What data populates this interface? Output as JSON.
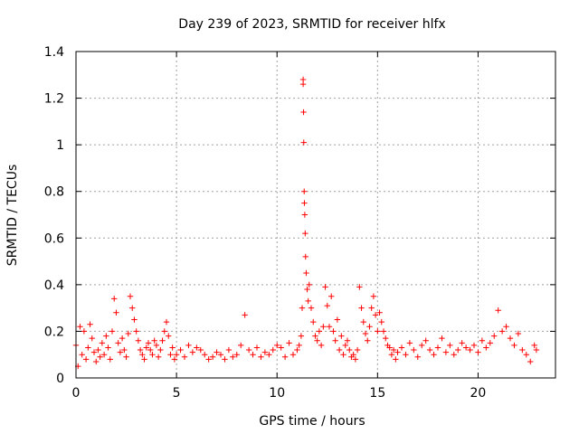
{
  "chart_data": {
    "type": "scatter",
    "title": "Day 239 of 2023, SRMTID for receiver hlfx",
    "xlabel": "GPS time / hours",
    "ylabel": "SRMTID / TECUs",
    "xlim": [
      0,
      23.85
    ],
    "ylim": [
      0,
      1.4
    ],
    "xticks": [
      0,
      5,
      10,
      15,
      20
    ],
    "xtick_labels": [
      "0",
      "5",
      "10",
      "15",
      "20"
    ],
    "yticks": [
      0,
      0.2,
      0.4,
      0.6,
      0.8,
      1.0,
      1.2,
      1.4
    ],
    "ytick_labels": [
      "0",
      "0.2",
      "0.4",
      "0.6",
      "0.8",
      "1",
      "1.2",
      "1.4"
    ],
    "grid": true,
    "marker": "+",
    "series": [
      {
        "name": "SRMTID",
        "color": "#ff0000",
        "x": [
          0.0,
          0.1,
          0.2,
          0.3,
          0.4,
          0.5,
          0.6,
          0.7,
          0.8,
          0.9,
          1.0,
          1.1,
          1.2,
          1.3,
          1.4,
          1.5,
          1.6,
          1.7,
          1.8,
          1.9,
          2.0,
          2.1,
          2.2,
          2.3,
          2.4,
          2.5,
          2.6,
          2.7,
          2.8,
          2.9,
          3.0,
          3.1,
          3.2,
          3.3,
          3.4,
          3.5,
          3.6,
          3.7,
          3.8,
          3.9,
          4.0,
          4.1,
          4.2,
          4.3,
          4.4,
          4.5,
          4.6,
          4.7,
          4.8,
          4.9,
          5.0,
          5.2,
          5.4,
          5.6,
          5.8,
          6.0,
          6.2,
          6.4,
          6.6,
          6.8,
          7.0,
          7.2,
          7.4,
          7.6,
          7.8,
          8.0,
          8.2,
          8.4,
          8.6,
          8.8,
          9.0,
          9.2,
          9.4,
          9.6,
          9.8,
          10.0,
          10.2,
          10.4,
          10.6,
          10.8,
          11.0,
          11.1,
          11.2,
          11.25,
          11.3,
          11.3,
          11.32,
          11.33,
          11.35,
          11.36,
          11.38,
          11.4,
          11.42,
          11.45,
          11.5,
          11.55,
          11.6,
          11.7,
          11.8,
          11.9,
          12.0,
          12.1,
          12.2,
          12.3,
          12.4,
          12.5,
          12.6,
          12.7,
          12.8,
          12.9,
          13.0,
          13.1,
          13.2,
          13.3,
          13.4,
          13.5,
          13.6,
          13.7,
          13.8,
          13.9,
          14.0,
          14.1,
          14.2,
          14.3,
          14.4,
          14.5,
          14.6,
          14.7,
          14.8,
          14.9,
          15.0,
          15.1,
          15.2,
          15.3,
          15.4,
          15.5,
          15.6,
          15.7,
          15.8,
          15.9,
          16.0,
          16.2,
          16.4,
          16.6,
          16.8,
          17.0,
          17.2,
          17.4,
          17.6,
          17.8,
          18.0,
          18.2,
          18.4,
          18.6,
          18.8,
          19.0,
          19.2,
          19.4,
          19.6,
          19.8,
          20.0,
          20.2,
          20.4,
          20.6,
          20.8,
          21.0,
          21.2,
          21.4,
          21.6,
          21.8,
          22.0,
          22.2,
          22.4,
          22.6,
          22.8,
          22.9
        ],
        "y": [
          0.14,
          0.05,
          0.22,
          0.1,
          0.2,
          0.08,
          0.13,
          0.23,
          0.17,
          0.11,
          0.07,
          0.12,
          0.09,
          0.15,
          0.1,
          0.18,
          0.13,
          0.08,
          0.2,
          0.34,
          0.28,
          0.15,
          0.11,
          0.17,
          0.12,
          0.09,
          0.19,
          0.35,
          0.3,
          0.25,
          0.2,
          0.16,
          0.12,
          0.1,
          0.08,
          0.13,
          0.15,
          0.12,
          0.1,
          0.16,
          0.14,
          0.09,
          0.12,
          0.16,
          0.2,
          0.24,
          0.18,
          0.1,
          0.13,
          0.08,
          0.1,
          0.12,
          0.09,
          0.14,
          0.11,
          0.13,
          0.12,
          0.1,
          0.08,
          0.09,
          0.11,
          0.1,
          0.08,
          0.12,
          0.09,
          0.1,
          0.14,
          0.27,
          0.12,
          0.1,
          0.13,
          0.09,
          0.11,
          0.1,
          0.12,
          0.14,
          0.13,
          0.09,
          0.15,
          0.1,
          0.12,
          0.14,
          0.18,
          0.3,
          1.28,
          1.26,
          1.14,
          1.01,
          0.8,
          0.75,
          0.7,
          0.62,
          0.52,
          0.45,
          0.38,
          0.33,
          0.4,
          0.3,
          0.24,
          0.18,
          0.16,
          0.2,
          0.14,
          0.22,
          0.39,
          0.31,
          0.22,
          0.35,
          0.2,
          0.16,
          0.25,
          0.12,
          0.18,
          0.1,
          0.14,
          0.16,
          0.12,
          0.09,
          0.1,
          0.08,
          0.12,
          0.39,
          0.3,
          0.24,
          0.19,
          0.16,
          0.22,
          0.3,
          0.35,
          0.27,
          0.2,
          0.28,
          0.24,
          0.2,
          0.17,
          0.14,
          0.13,
          0.1,
          0.12,
          0.08,
          0.11,
          0.13,
          0.1,
          0.15,
          0.12,
          0.09,
          0.14,
          0.16,
          0.12,
          0.1,
          0.13,
          0.17,
          0.11,
          0.14,
          0.1,
          0.12,
          0.15,
          0.13,
          0.12,
          0.14,
          0.11,
          0.16,
          0.13,
          0.15,
          0.18,
          0.29,
          0.2,
          0.22,
          0.17,
          0.14,
          0.19,
          0.12,
          0.1,
          0.07,
          0.14,
          0.12
        ]
      }
    ]
  }
}
